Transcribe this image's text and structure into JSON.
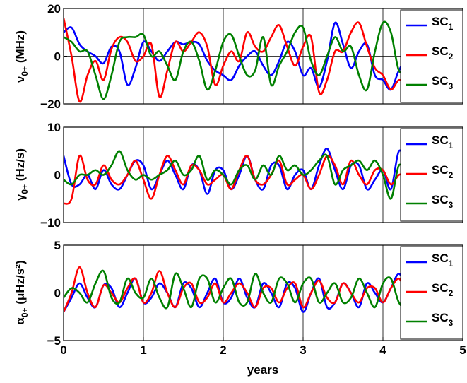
{
  "chart_data": [
    {
      "type": "line",
      "ylabel": {
        "symbol": "ν",
        "sub": "0+",
        "unit": " (MHz)"
      },
      "xlim": [
        0,
        5
      ],
      "ylim": [
        -20,
        20
      ],
      "yticks": [
        "20",
        "0",
        "−20"
      ],
      "ytick_values": [
        20,
        0,
        -20
      ],
      "grid": "vertical",
      "legend_position": "right",
      "series": [
        {
          "name": "SC",
          "sub": "1",
          "color": "#0000ff",
          "x": [
            0,
            0.1,
            0.2,
            0.3,
            0.4,
            0.5,
            0.6,
            0.7,
            0.8,
            0.9,
            1.0,
            1.1,
            1.2,
            1.3,
            1.4,
            1.5,
            1.6,
            1.7,
            1.8,
            1.9,
            2.0,
            2.1,
            2.2,
            2.3,
            2.4,
            2.5,
            2.6,
            2.7,
            2.8,
            2.9,
            3.0,
            3.1,
            3.2,
            3.3,
            3.4,
            3.5,
            3.6,
            3.7,
            3.8,
            3.9,
            4.0,
            4.1,
            4.2,
            4.3,
            4.4,
            4.5,
            4.6,
            4.7,
            4.8,
            4.9,
            5.0
          ],
          "y": [
            10,
            12,
            5,
            2,
            0,
            -3,
            4,
            2,
            -12,
            -5,
            6,
            2,
            -2,
            2,
            6,
            5,
            6,
            5,
            -2,
            -6,
            -8,
            -10,
            -4,
            0,
            2,
            -4,
            -8,
            -2,
            6,
            2,
            -8,
            -5,
            -13,
            -2,
            14,
            5,
            -5,
            2,
            5,
            -8,
            -10,
            -14,
            -6,
            -2,
            -12,
            -8,
            -2,
            0,
            0,
            0,
            1
          ],
          "note": ""
        },
        {
          "name": "SC",
          "sub": "2",
          "color": "#ff0000",
          "x": [
            0,
            0.1,
            0.2,
            0.3,
            0.4,
            0.5,
            0.6,
            0.7,
            0.8,
            0.9,
            1.0,
            1.1,
            1.2,
            1.3,
            1.4,
            1.5,
            1.6,
            1.7,
            1.8,
            1.9,
            2.0,
            2.1,
            2.2,
            2.3,
            2.4,
            2.5,
            2.6,
            2.7,
            2.8,
            2.9,
            3.0,
            3.1,
            3.2,
            3.3,
            3.4,
            3.5,
            3.6,
            3.7,
            3.8,
            3.9,
            4.0,
            4.1,
            4.2,
            4.3,
            4.4,
            4.5,
            4.6,
            4.7,
            4.8,
            4.9,
            5.0
          ],
          "y": [
            16,
            0,
            -19,
            -8,
            -2,
            -10,
            3,
            8,
            6,
            -2,
            0,
            5,
            -17,
            -6,
            6,
            2,
            6,
            10,
            4,
            -12,
            -4,
            2,
            -2,
            10,
            4,
            2,
            8,
            13,
            4,
            -4,
            4,
            8,
            -15,
            -10,
            2,
            2,
            10,
            14,
            4,
            -5,
            -8,
            -14,
            -10,
            -12,
            -8,
            -4,
            0,
            2,
            2,
            2,
            2
          ]
        },
        {
          "name": "SC",
          "sub": "3",
          "color": "#008000",
          "x": [
            0,
            0.1,
            0.2,
            0.3,
            0.4,
            0.5,
            0.6,
            0.7,
            0.8,
            0.9,
            1.0,
            1.1,
            1.2,
            1.3,
            1.4,
            1.5,
            1.6,
            1.7,
            1.8,
            1.9,
            2.0,
            2.1,
            2.2,
            2.3,
            2.4,
            2.5,
            2.6,
            2.7,
            2.8,
            2.9,
            3.0,
            3.1,
            3.2,
            3.3,
            3.4,
            3.5,
            3.6,
            3.7,
            3.8,
            3.9,
            4.0,
            4.1,
            4.2,
            4.3,
            4.4,
            4.5,
            4.6,
            4.7,
            4.8,
            4.9,
            5.0
          ],
          "y": [
            8,
            6,
            2,
            2,
            -8,
            -18,
            -8,
            6,
            8,
            8,
            9,
            0,
            2,
            -4,
            -10,
            2,
            6,
            -2,
            -14,
            -6,
            6,
            9,
            0,
            -8,
            -6,
            8,
            -12,
            -4,
            2,
            10,
            12,
            -2,
            -8,
            0,
            8,
            2,
            4,
            -8,
            -14,
            2,
            14,
            10,
            -6,
            -4,
            2,
            4,
            10,
            12,
            14,
            16,
            18
          ]
        }
      ]
    },
    {
      "type": "line",
      "ylabel": {
        "symbol": "γ",
        "sub": "0+",
        "unit": " (Hz/s)"
      },
      "xlim": [
        0,
        5
      ],
      "ylim": [
        -10,
        10
      ],
      "yticks": [
        "10",
        "0",
        "−10"
      ],
      "ytick_values": [
        10,
        0,
        -10
      ],
      "grid": "vertical",
      "legend_position": "right",
      "series": [
        {
          "name": "SC",
          "sub": "1",
          "color": "#0000ff",
          "x": [
            0,
            0.1,
            0.2,
            0.3,
            0.4,
            0.5,
            0.6,
            0.7,
            0.8,
            0.9,
            1.0,
            1.1,
            1.2,
            1.3,
            1.4,
            1.5,
            1.6,
            1.7,
            1.8,
            1.9,
            2.0,
            2.1,
            2.2,
            2.3,
            2.4,
            2.5,
            2.6,
            2.7,
            2.8,
            2.9,
            3.0,
            3.1,
            3.2,
            3.3,
            3.4,
            3.5,
            3.6,
            3.7,
            3.8,
            3.9,
            4.0,
            4.1,
            4.2,
            4.3,
            4.4,
            4.5,
            4.6,
            4.7,
            4.8,
            4.9,
            5.0
          ],
          "y": [
            4,
            -2,
            -2,
            0,
            -3,
            1,
            -2,
            -3,
            0,
            3,
            2,
            -3,
            0,
            3,
            0,
            -3,
            2,
            1,
            -4,
            1,
            1,
            -3,
            0,
            4,
            -1,
            -3,
            2,
            2,
            -3,
            0,
            1,
            -3,
            2,
            5.5,
            1,
            -3,
            2,
            2,
            -3,
            -1,
            1,
            -3,
            5,
            2,
            0,
            1,
            2,
            2,
            1,
            1,
            1
          ]
        },
        {
          "name": "SC",
          "sub": "2",
          "color": "#ff0000",
          "x": [
            0,
            0.1,
            0.2,
            0.3,
            0.4,
            0.5,
            0.6,
            0.7,
            0.8,
            0.9,
            1.0,
            1.1,
            1.2,
            1.3,
            1.4,
            1.5,
            1.6,
            1.7,
            1.8,
            1.9,
            2.0,
            2.1,
            2.2,
            2.3,
            2.4,
            2.5,
            2.6,
            2.7,
            2.8,
            2.9,
            3.0,
            3.1,
            3.2,
            3.3,
            3.4,
            3.5,
            3.6,
            3.7,
            3.8,
            3.9,
            4.0,
            4.1,
            4.2,
            4.3,
            4.4,
            4.5,
            4.6,
            4.7,
            4.8,
            4.9,
            5.0
          ],
          "y": [
            -6,
            -5,
            4,
            -1,
            -2,
            2,
            -1,
            -2,
            0,
            3,
            -1,
            -5,
            0,
            4,
            1,
            -2,
            2,
            1,
            -2,
            -1,
            0,
            -3,
            1,
            4,
            -1,
            -2,
            0,
            3,
            -2,
            -1,
            0,
            -3,
            0,
            4,
            2,
            -2,
            3,
            0,
            -2,
            1,
            1,
            -2,
            0,
            0,
            0,
            0,
            0,
            0,
            0,
            0,
            0
          ]
        },
        {
          "name": "SC",
          "sub": "3",
          "color": "#008000",
          "x": [
            0,
            0.1,
            0.2,
            0.3,
            0.4,
            0.5,
            0.6,
            0.7,
            0.8,
            0.9,
            1.0,
            1.1,
            1.2,
            1.3,
            1.4,
            1.5,
            1.6,
            1.7,
            1.8,
            1.9,
            2.0,
            2.1,
            2.2,
            2.3,
            2.4,
            2.5,
            2.6,
            2.7,
            2.8,
            2.9,
            3.0,
            3.1,
            3.2,
            3.3,
            3.4,
            3.5,
            3.6,
            3.7,
            3.8,
            3.9,
            4.0,
            4.1,
            4.2,
            4.3,
            4.4,
            4.5,
            4.6,
            4.7,
            4.8,
            4.9,
            5.0
          ],
          "y": [
            -1,
            -2,
            0,
            0,
            1,
            0,
            2,
            5,
            1,
            -1,
            0,
            -1,
            0,
            1,
            3,
            0,
            1,
            4,
            -1,
            1,
            0,
            -2,
            1,
            2,
            -1,
            2,
            0,
            4,
            1,
            2,
            0,
            1,
            3,
            4,
            -2,
            1,
            2,
            3,
            1,
            3,
            0,
            -5,
            2,
            0,
            0,
            0,
            0,
            0,
            0,
            0,
            0
          ]
        }
      ]
    },
    {
      "type": "line",
      "ylabel": {
        "symbol": "α",
        "sub": "0+",
        "unit": " (μHz/s²)"
      },
      "xlim": [
        0,
        5
      ],
      "ylim": [
        -5,
        5
      ],
      "yticks": [
        "5",
        "0",
        "−5"
      ],
      "ytick_values": [
        5,
        0,
        -5
      ],
      "xticks": [
        "0",
        "1",
        "2",
        "3",
        "4",
        "5"
      ],
      "xtick_values": [
        0,
        1,
        2,
        3,
        4,
        5
      ],
      "xlabel": "years",
      "grid": "vertical",
      "legend_position": "right",
      "series": [
        {
          "name": "SC",
          "sub": "1",
          "color": "#0000ff",
          "x": [
            0,
            0.1,
            0.2,
            0.3,
            0.4,
            0.5,
            0.6,
            0.7,
            0.8,
            0.9,
            1.0,
            1.1,
            1.2,
            1.3,
            1.4,
            1.5,
            1.6,
            1.7,
            1.8,
            1.9,
            2.0,
            2.1,
            2.2,
            2.3,
            2.4,
            2.5,
            2.6,
            2.7,
            2.8,
            2.9,
            3.0,
            3.1,
            3.2,
            3.3,
            3.4,
            3.5,
            3.6,
            3.7,
            3.8,
            3.9,
            4.0,
            4.1,
            4.2,
            4.3,
            4.4,
            4.5,
            4.6,
            4.7,
            4.8,
            4.9,
            5.0
          ],
          "y": [
            -2,
            -0.5,
            1,
            -0.5,
            -1.5,
            0.8,
            0.5,
            -1.5,
            0,
            1.5,
            -1,
            -0.5,
            1,
            0,
            -1.5,
            1,
            0.5,
            -1.5,
            0,
            1.5,
            -1,
            -0.5,
            1.5,
            -0.5,
            -1.5,
            1,
            0,
            -1.5,
            1,
            0.5,
            -2,
            0,
            1.5,
            -1.5,
            -1,
            1,
            0,
            -1.5,
            1,
            0,
            -1,
            0.5,
            2,
            0.5,
            0,
            0,
            0,
            0,
            0,
            0,
            0
          ]
        },
        {
          "name": "SC",
          "sub": "2",
          "color": "#ff0000",
          "x": [
            0,
            0.1,
            0.2,
            0.3,
            0.4,
            0.5,
            0.6,
            0.7,
            0.8,
            0.9,
            1.0,
            1.1,
            1.2,
            1.3,
            1.4,
            1.5,
            1.6,
            1.7,
            1.8,
            1.9,
            2.0,
            2.1,
            2.2,
            2.3,
            2.4,
            2.5,
            2.6,
            2.7,
            2.8,
            2.9,
            3.0,
            3.1,
            3.2,
            3.3,
            3.4,
            3.5,
            3.6,
            3.7,
            3.8,
            3.9,
            4.0,
            4.1,
            4.2,
            4.3,
            4.4,
            4.5,
            4.6,
            4.7,
            4.8,
            4.9,
            5.0
          ],
          "y": [
            -2,
            0,
            2.7,
            0,
            -1.5,
            0.8,
            0,
            -1,
            0.5,
            1.5,
            -1,
            0,
            2.3,
            0,
            -1.5,
            0.5,
            1,
            -1,
            -0.5,
            1,
            -1,
            0,
            1,
            0,
            -1.5,
            0.5,
            0.5,
            -1,
            0.5,
            1,
            -1.5,
            0,
            1.3,
            -0.5,
            -1,
            1,
            0,
            -1,
            0.5,
            0.5,
            -1,
            0.5,
            1.5,
            0,
            0,
            0,
            0,
            0,
            0,
            0,
            0
          ]
        },
        {
          "name": "SC",
          "sub": "3",
          "color": "#008000",
          "x": [
            0,
            0.1,
            0.2,
            0.3,
            0.4,
            0.5,
            0.6,
            0.7,
            0.8,
            0.9,
            1.0,
            1.1,
            1.2,
            1.3,
            1.4,
            1.5,
            1.6,
            1.7,
            1.8,
            1.9,
            2.0,
            2.1,
            2.2,
            2.3,
            2.4,
            2.5,
            2.6,
            2.7,
            2.8,
            2.9,
            3.0,
            3.1,
            3.2,
            3.3,
            3.4,
            3.5,
            3.6,
            3.7,
            3.8,
            3.9,
            4.0,
            4.1,
            4.2,
            4.3,
            4.4,
            4.5,
            4.6,
            4.7,
            4.8,
            4.9,
            5.0
          ],
          "y": [
            -0.5,
            0.5,
            0,
            -1,
            1,
            2.3,
            -0.5,
            -1,
            1.5,
            0,
            -0.5,
            1.5,
            -0.5,
            -1.5,
            2,
            0.5,
            -1.5,
            1.5,
            1.5,
            -1,
            0.5,
            1.5,
            -1,
            -1,
            2,
            0,
            -1,
            1.5,
            1,
            -1,
            1,
            1.5,
            -1,
            0,
            1,
            -1,
            -0.5,
            1.5,
            0,
            -1.5,
            1,
            1.5,
            -1,
            -1.5,
            0,
            0,
            0,
            0,
            0,
            0,
            0
          ]
        }
      ]
    }
  ]
}
